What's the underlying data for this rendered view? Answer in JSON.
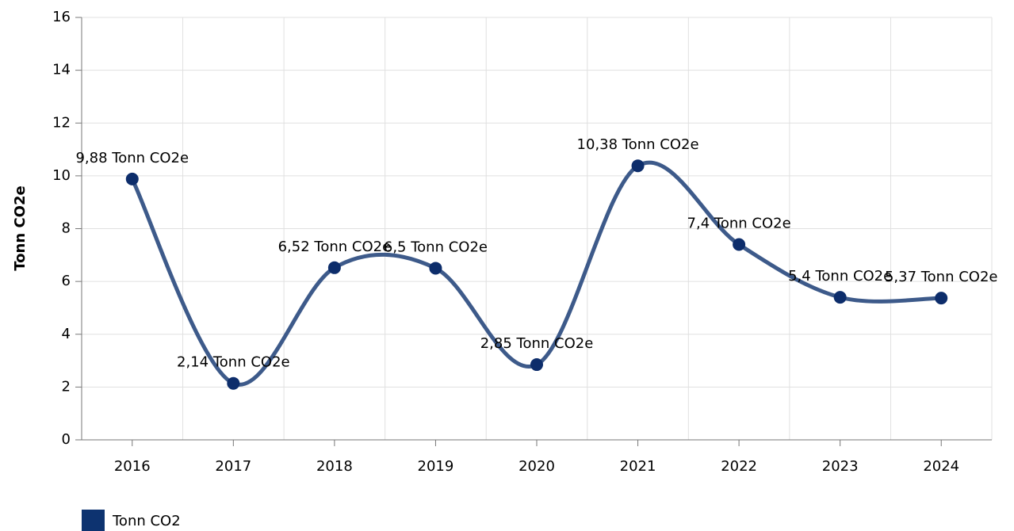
{
  "chart_data": {
    "type": "line",
    "y_label": "Tonn CO2e",
    "categories": [
      "2016",
      "2017",
      "2018",
      "2019",
      "2020",
      "2021",
      "2022",
      "2023",
      "2024"
    ],
    "series": [
      {
        "name": "Tonn CO2",
        "color": "#3d5a8a",
        "marker_color": "#0d2d6b",
        "legend_color": "#0d3370",
        "values": [
          9.88,
          2.14,
          6.52,
          6.5,
          2.85,
          10.38,
          7.4,
          5.4,
          5.37
        ],
        "value_labels": [
          "9,88 Tonn CO2e",
          "2,14 Tonn CO2e",
          "6,52 Tonn CO2e",
          "6,5 Tonn CO2e",
          "2,85 Tonn CO2e",
          "10,38 Tonn CO2e",
          "7,4 Tonn CO2e",
          "5,4 Tonn CO2e",
          "5,37 Tonn CO2e"
        ]
      }
    ],
    "ylim": [
      0,
      16
    ],
    "yticks": [
      0,
      2,
      4,
      6,
      8,
      10,
      12,
      14,
      16
    ],
    "grid": true,
    "smooth": true
  }
}
